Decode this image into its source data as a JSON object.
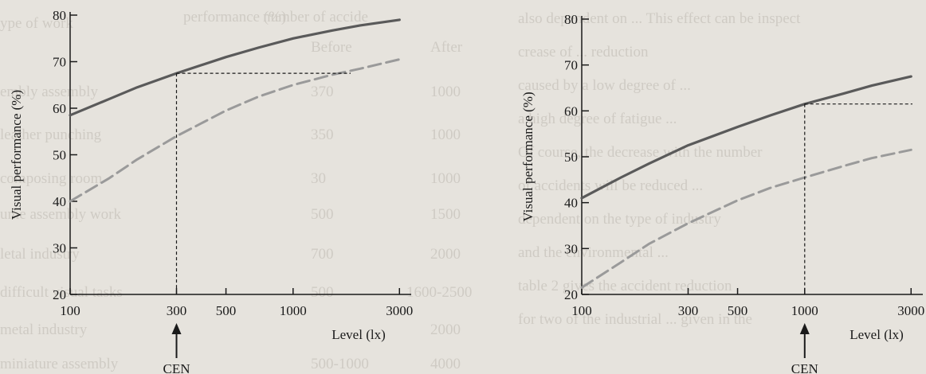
{
  "background_text": {
    "left_page": [
      "performance (%)",
      "number of accide",
      "ype of work",
      "After",
      "Before",
      "1000",
      "370",
      "embly assembly",
      "1000",
      "350",
      "leather punching",
      "1000",
      "30",
      "composing room",
      "1500",
      "500",
      "ume assembly work",
      "2000",
      "700",
      "letal industry",
      "1600-2500",
      "500",
      "difficult visual tasks",
      "2000",
      "metal industry",
      "4000",
      "500-1000",
      "miniature assembly"
    ],
    "right_page": [
      "also dependent on ... This effect can be inspect",
      "crease of ... reduction",
      "caused by a low degree of ...",
      "a high degree of fatigue ...",
      "Of course, the decrease with the number",
      "of accidents will be reduced ...",
      "dependent on the type of industry",
      "and the environmental ...",
      "table 2 gives the accident reduction",
      "for two of the industrial ... given in the"
    ]
  },
  "colors": {
    "solid_line": "#5a5a5a",
    "dashed_line": "#9a9a9a",
    "axis": "#1a1a1a"
  },
  "chart_data": [
    {
      "type": "line",
      "xscale": "log",
      "xlabel": "Level (lx)",
      "ylabel": "Visual performance (%)",
      "xlim": [
        100,
        3500
      ],
      "ylim": [
        20,
        80
      ],
      "xticks": [
        100,
        300,
        500,
        1000,
        3000
      ],
      "yticks": [
        20,
        30,
        40,
        50,
        60,
        70,
        80
      ],
      "series": [
        {
          "style": "solid",
          "x": [
            100,
            150,
            200,
            300,
            500,
            700,
            1000,
            1500,
            2000,
            3000
          ],
          "y": [
            58.5,
            62,
            64.5,
            67.5,
            71,
            73,
            75,
            76.7,
            77.8,
            79
          ]
        },
        {
          "style": "dashed",
          "x": [
            100,
            150,
            200,
            300,
            500,
            700,
            1000,
            1500,
            2000,
            3000
          ],
          "y": [
            40,
            45,
            49,
            54,
            59.5,
            62.5,
            65,
            67.2,
            68.5,
            70.5
          ]
        }
      ],
      "reference": {
        "x": 300,
        "y": 67.5,
        "label": "CEN"
      }
    },
    {
      "type": "line",
      "xscale": "log",
      "xlabel": "Level (lx)",
      "ylabel": "Visual performance (%)",
      "xlim": [
        100,
        3500
      ],
      "ylim": [
        20,
        80
      ],
      "xticks": [
        100,
        300,
        500,
        1000,
        3000
      ],
      "yticks": [
        20,
        30,
        40,
        50,
        60,
        70,
        80
      ],
      "series": [
        {
          "style": "solid",
          "x": [
            100,
            150,
            200,
            300,
            500,
            700,
            1000,
            1500,
            2000,
            3000
          ],
          "y": [
            41,
            45.5,
            48.5,
            52.5,
            56.5,
            59,
            61.5,
            63.8,
            65.5,
            67.5
          ]
        },
        {
          "style": "dashed",
          "x": [
            100,
            150,
            200,
            300,
            500,
            700,
            1000,
            1500,
            2000,
            3000
          ],
          "y": [
            21.5,
            27,
            31,
            35.5,
            40.5,
            43.2,
            45.5,
            48,
            49.7,
            51.5
          ]
        }
      ],
      "reference": {
        "x": 1000,
        "y": 61.5,
        "label": "CEN"
      }
    }
  ]
}
